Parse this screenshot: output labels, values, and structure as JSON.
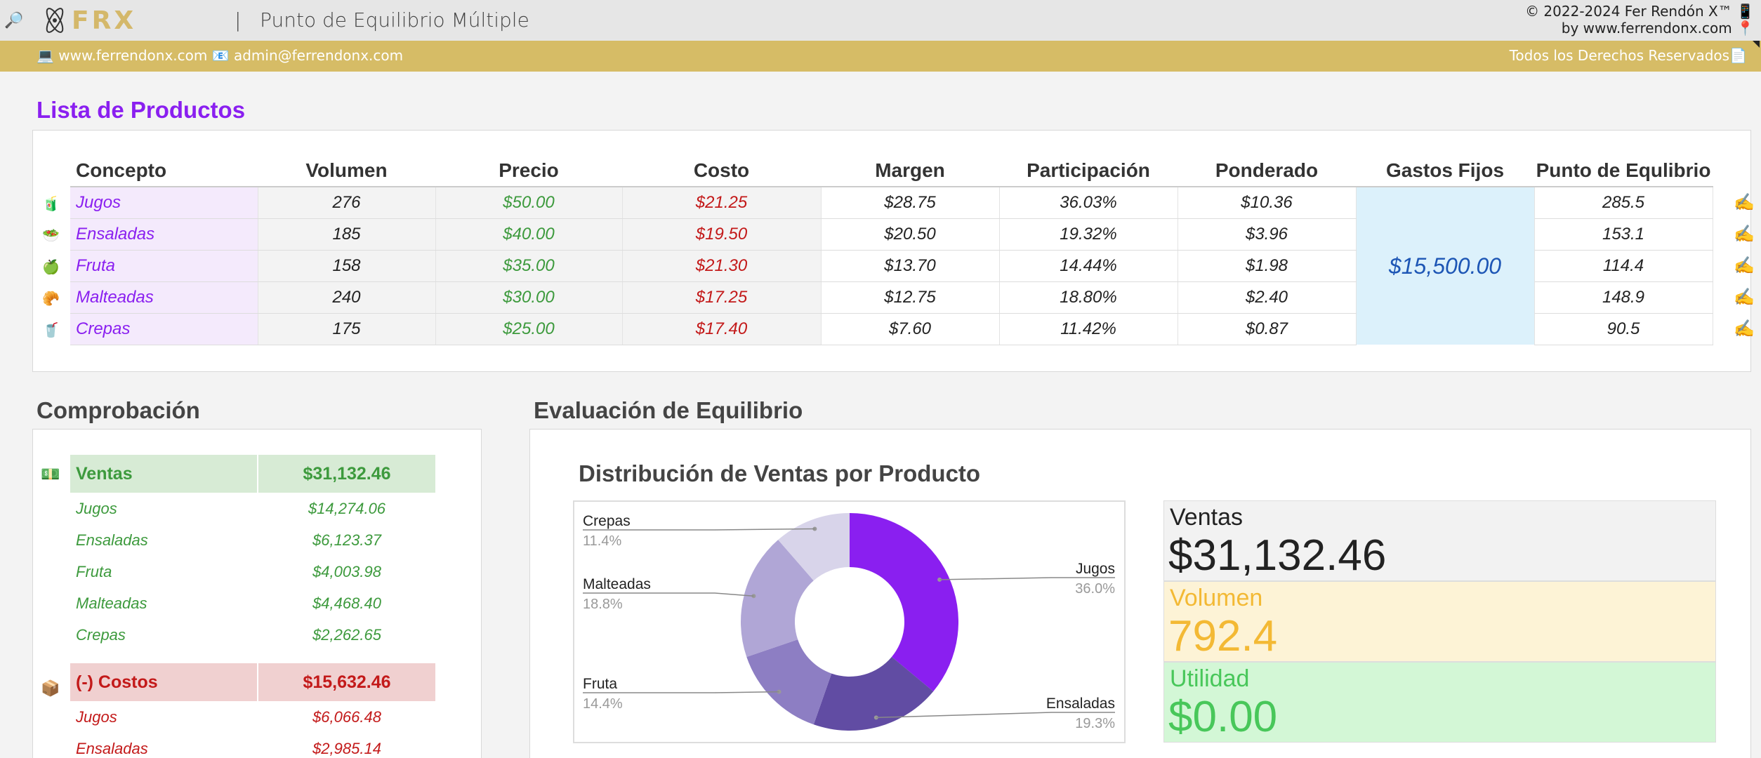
{
  "header": {
    "search_icon": "🔎",
    "logo_text": "FRX",
    "separator": "|",
    "title": "Punto de Equilibrio Múltiple",
    "copyright_line1": "© 2022-2024 Fer Rendón X™ 📱",
    "copyright_line2": "by www.ferrendonx.com 📍"
  },
  "goldbar": {
    "left": "💻 www.ferrendonx.com 📧 admin@ferrendonx.com",
    "right": "Todos los Derechos Reservados📄"
  },
  "products": {
    "title": "Lista de Productos",
    "columns": [
      "Concepto",
      "Volumen",
      "Precio",
      "Costo",
      "Margen",
      "Participación",
      "Ponderado",
      "Gastos Fijos",
      "Punto de Equlibrio"
    ],
    "gastos_fijos": "$15,500.00",
    "edit_icon": "✍️",
    "rows": [
      {
        "icon": "🧃",
        "concepto": "Jugos",
        "volumen": "276",
        "precio": "$50.00",
        "costo": "$21.25",
        "margen": "$28.75",
        "participacion": "36.03%",
        "ponderado": "$10.36",
        "punto": "285.5"
      },
      {
        "icon": "🥗",
        "concepto": "Ensaladas",
        "volumen": "185",
        "precio": "$40.00",
        "costo": "$19.50",
        "margen": "$20.50",
        "participacion": "19.32%",
        "ponderado": "$3.96",
        "punto": "153.1"
      },
      {
        "icon": "🍏",
        "concepto": "Fruta",
        "volumen": "158",
        "precio": "$35.00",
        "costo": "$21.30",
        "margen": "$13.70",
        "participacion": "14.44%",
        "ponderado": "$1.98",
        "punto": "114.4"
      },
      {
        "icon": "🥐",
        "concepto": "Malteadas",
        "volumen": "240",
        "precio": "$30.00",
        "costo": "$17.25",
        "margen": "$12.75",
        "participacion": "18.80%",
        "ponderado": "$2.40",
        "punto": "148.9"
      },
      {
        "icon": "🥤",
        "concepto": "Crepas",
        "volumen": "175",
        "precio": "$25.00",
        "costo": "$17.40",
        "margen": "$7.60",
        "participacion": "11.42%",
        "ponderado": "$0.87",
        "punto": "90.5"
      }
    ]
  },
  "comprobacion": {
    "title": "Comprobación",
    "ventas_icon": "💵",
    "ventas_label": "Ventas",
    "ventas_total": "$31,132.46",
    "ventas_items": [
      {
        "label": "Jugos",
        "value": "$14,274.06"
      },
      {
        "label": "Ensaladas",
        "value": "$6,123.37"
      },
      {
        "label": "Fruta",
        "value": "$4,003.98"
      },
      {
        "label": "Malteadas",
        "value": "$4,468.40"
      },
      {
        "label": "Crepas",
        "value": "$2,262.65"
      }
    ],
    "costos_icon": "📦",
    "costos_label": "(-) Costos",
    "costos_total": "$15,632.46",
    "costos_items": [
      {
        "label": "Jugos",
        "value": "$6,066.48"
      },
      {
        "label": "Ensaladas",
        "value": "$2,985.14"
      }
    ]
  },
  "evaluacion": {
    "title": "Evaluación de Equilibrio",
    "kpis": {
      "ventas_label": "Ventas",
      "ventas_value": "$31,132.46",
      "ventas_color": "#222222",
      "ventas_bg": "#f2f2f2",
      "volumen_label": "Volumen",
      "volumen_value": "792.4",
      "volumen_color": "#f3b934",
      "volumen_bg": "#fdf3d6",
      "utilidad_label": "Utilidad",
      "utilidad_value": "$0.00",
      "utilidad_color": "#48c75a",
      "utilidad_bg": "#d3f7d6"
    }
  },
  "chart_data": {
    "type": "pie",
    "title": "Distribución de Ventas por Producto",
    "donut": true,
    "categories": [
      "Jugos",
      "Ensaladas",
      "Fruta",
      "Malteadas",
      "Crepas"
    ],
    "values": [
      36.0,
      19.3,
      14.4,
      18.8,
      11.4
    ],
    "value_labels": [
      "36.0%",
      "19.3%",
      "14.4%",
      "18.8%",
      "11.4%"
    ],
    "colors": [
      "#8a1ff0",
      "#614ca3",
      "#8d7ec3",
      "#b0a6d6",
      "#d8d4ea"
    ]
  }
}
